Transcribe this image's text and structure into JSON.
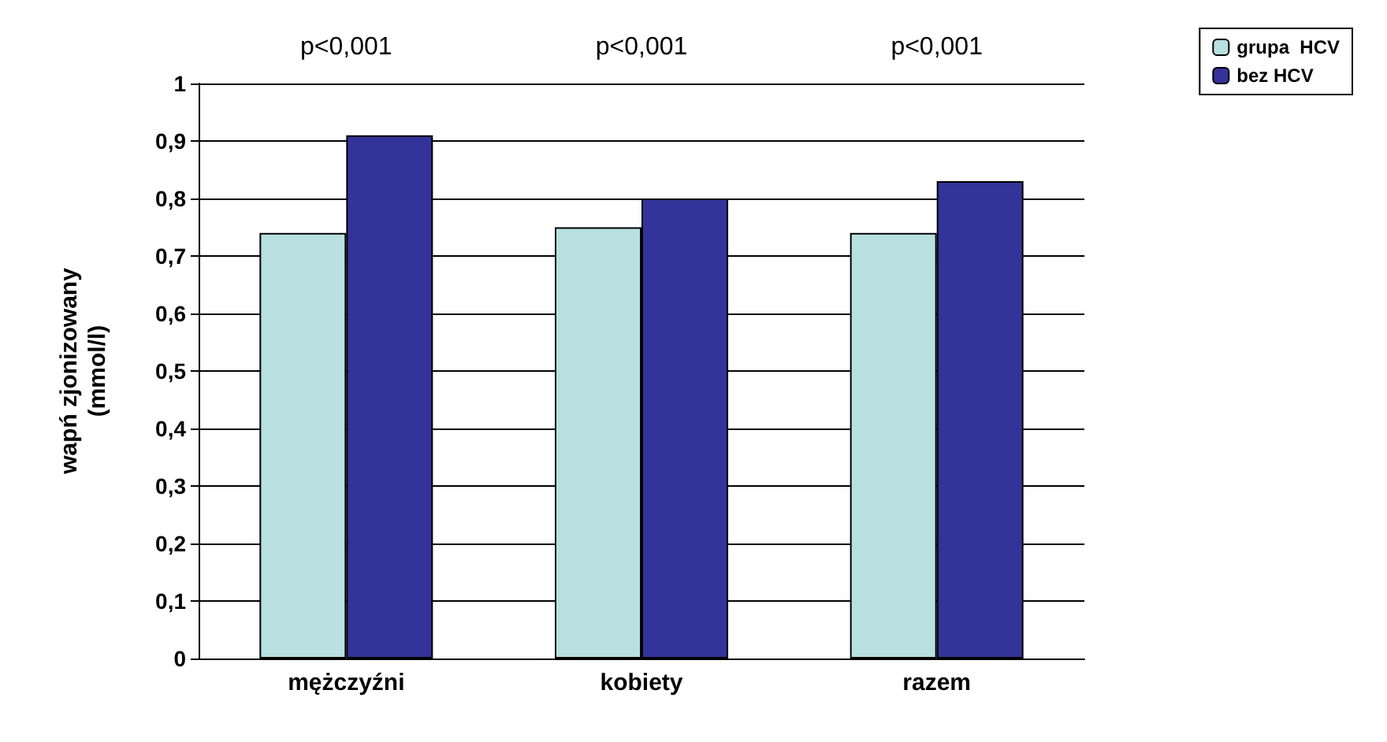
{
  "chart_data": {
    "type": "bar",
    "categories": [
      "mężczyźni",
      "kobiety",
      "razem"
    ],
    "series": [
      {
        "name": "grupa  HCV",
        "color": "#b8e0e0",
        "values": [
          0.74,
          0.75,
          0.74
        ]
      },
      {
        "name": "bez HCV",
        "color": "#333399",
        "values": [
          0.91,
          0.8,
          0.83
        ]
      }
    ],
    "ylabel": "wapń zjonizowany\n(mmol/l)",
    "ylim": [
      0,
      1
    ],
    "yticks": [
      {
        "value": 0,
        "label": "0"
      },
      {
        "value": 0.1,
        "label": "0,1"
      },
      {
        "value": 0.2,
        "label": "0,2"
      },
      {
        "value": 0.3,
        "label": "0,3"
      },
      {
        "value": 0.4,
        "label": "0,4"
      },
      {
        "value": 0.5,
        "label": "0,5"
      },
      {
        "value": 0.6,
        "label": "0,6"
      },
      {
        "value": 0.7,
        "label": "0,7"
      },
      {
        "value": 0.8,
        "label": "0,8"
      },
      {
        "value": 0.9,
        "label": "0,9"
      },
      {
        "value": 1,
        "label": "1"
      }
    ],
    "annotations": [
      "p<0,001",
      "p<0,001",
      "p<0,001"
    ],
    "grid": "y",
    "legend": "top right"
  }
}
